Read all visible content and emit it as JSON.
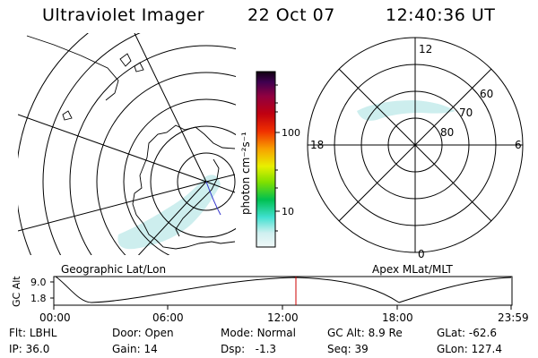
{
  "header": {
    "title": "Ultraviolet Imager",
    "date": "22 Oct 07",
    "time": "12:40:36 UT"
  },
  "colorbar": {
    "unit_label": "photon cm⁻²s⁻¹",
    "ticks": [
      "100",
      "10"
    ]
  },
  "panels": {
    "left_label": "Geographic Lat/Lon",
    "right_label": "Apex MLat/MLT"
  },
  "polar_plot": {
    "mlt_labels": [
      "12",
      "18",
      "6",
      "0"
    ],
    "mlat_labels": [
      "60",
      "70",
      "80"
    ]
  },
  "timeline": {
    "axis_label": "GC Alt",
    "y_ticks": [
      "9.0",
      "1.8"
    ],
    "x_ticks": [
      "00:00",
      "06:00",
      "12:00",
      "18:00",
      "23:59"
    ],
    "current_time_marker_color": "#cc0000"
  },
  "info": {
    "row1": [
      {
        "label": "Flt:",
        "value": "LBHL"
      },
      {
        "label": "Door:",
        "value": "Open"
      },
      {
        "label": "Mode:",
        "value": "Normal"
      },
      {
        "label": "GC Alt:",
        "value": "8.9 Re"
      },
      {
        "label": "GLat:",
        "value": "-62.6"
      }
    ],
    "row2": [
      {
        "label": "IP:",
        "value": "36.0"
      },
      {
        "label": "Gain:",
        "value": "14"
      },
      {
        "label": "Dsp:",
        "value": "-1.3"
      },
      {
        "label": "Seq:",
        "value": "39"
      },
      {
        "label": "GLon:",
        "value": "127.4"
      }
    ]
  },
  "colors": {
    "aurora_cyan": "#c8ecec",
    "grid_line": "#000000",
    "boundary_blue": "#3333cc"
  }
}
